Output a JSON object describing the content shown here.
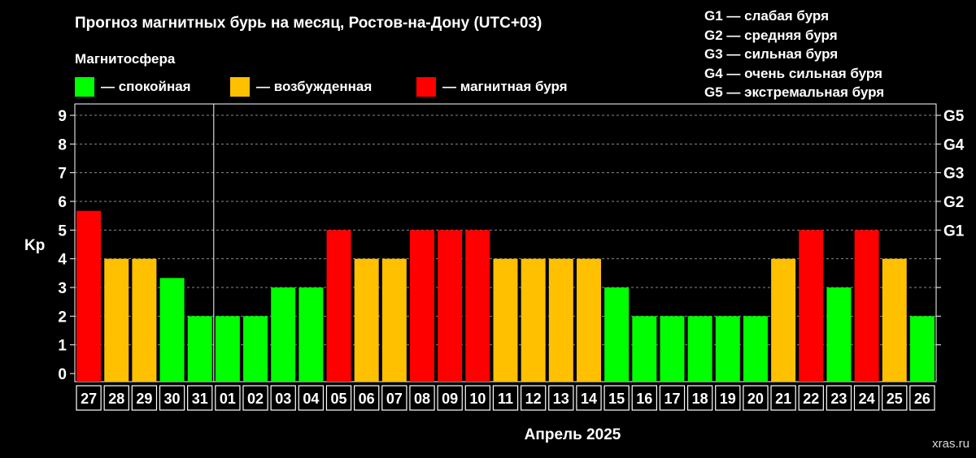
{
  "title": "Прогноз магнитных бурь на месяц, Ростов-на-Дону (UTC+03)",
  "legend": {
    "heading": "Магнитосфера",
    "items": [
      {
        "label": "— спокойная",
        "color": "#00ff00"
      },
      {
        "label": "— возбужденная",
        "color": "#ffc000"
      },
      {
        "label": "— магнитная буря",
        "color": "#ff0000"
      }
    ]
  },
  "g_scale": [
    "G1 — слабая буря",
    "G2 — средняя буря",
    "G3 — сильная буря",
    "G4 — очень сильная буря",
    "G5 — экстремальная буря"
  ],
  "watermark": "xras.ru",
  "colors": {
    "calm": "#00ff00",
    "excited": "#ffc000",
    "storm": "#ff0000",
    "background": "#000000",
    "text": "#ffffff"
  },
  "chart_data": {
    "type": "bar",
    "title": "Прогноз магнитных бурь на месяц, Ростов-на-Дону (UTC+03)",
    "xlabel": "Апрель 2025",
    "ylabel": "Kp",
    "ylim": [
      0,
      9
    ],
    "yticks": [
      "0",
      "1",
      "2",
      "3",
      "4",
      "5",
      "6",
      "7",
      "8",
      "9"
    ],
    "right_ticks": [
      {
        "kp": 5,
        "label": "G1"
      },
      {
        "kp": 6,
        "label": "G2"
      },
      {
        "kp": 7,
        "label": "G3"
      },
      {
        "kp": 8,
        "label": "G4"
      },
      {
        "kp": 9,
        "label": "G5"
      }
    ],
    "right_tick_marks": [
      1,
      2,
      3,
      4
    ],
    "grid": true,
    "month_divider_after": "31",
    "categories": [
      "27",
      "28",
      "29",
      "30",
      "31",
      "01",
      "02",
      "03",
      "04",
      "05",
      "06",
      "07",
      "08",
      "09",
      "10",
      "11",
      "12",
      "13",
      "14",
      "15",
      "16",
      "17",
      "18",
      "19",
      "20",
      "21",
      "22",
      "23",
      "24",
      "25",
      "26"
    ],
    "values": [
      5.67,
      4,
      4,
      3.33,
      2,
      2,
      2,
      3,
      3,
      5,
      4,
      4,
      5,
      5,
      5,
      4,
      4,
      4,
      4,
      3,
      2,
      2,
      2,
      2,
      2,
      4,
      5,
      3,
      5,
      4,
      2
    ],
    "levels": [
      "storm",
      "excited",
      "excited",
      "calm",
      "calm",
      "calm",
      "calm",
      "calm",
      "calm",
      "storm",
      "excited",
      "excited",
      "storm",
      "storm",
      "storm",
      "excited",
      "excited",
      "excited",
      "excited",
      "calm",
      "calm",
      "calm",
      "calm",
      "calm",
      "calm",
      "excited",
      "storm",
      "calm",
      "storm",
      "excited",
      "calm"
    ]
  }
}
